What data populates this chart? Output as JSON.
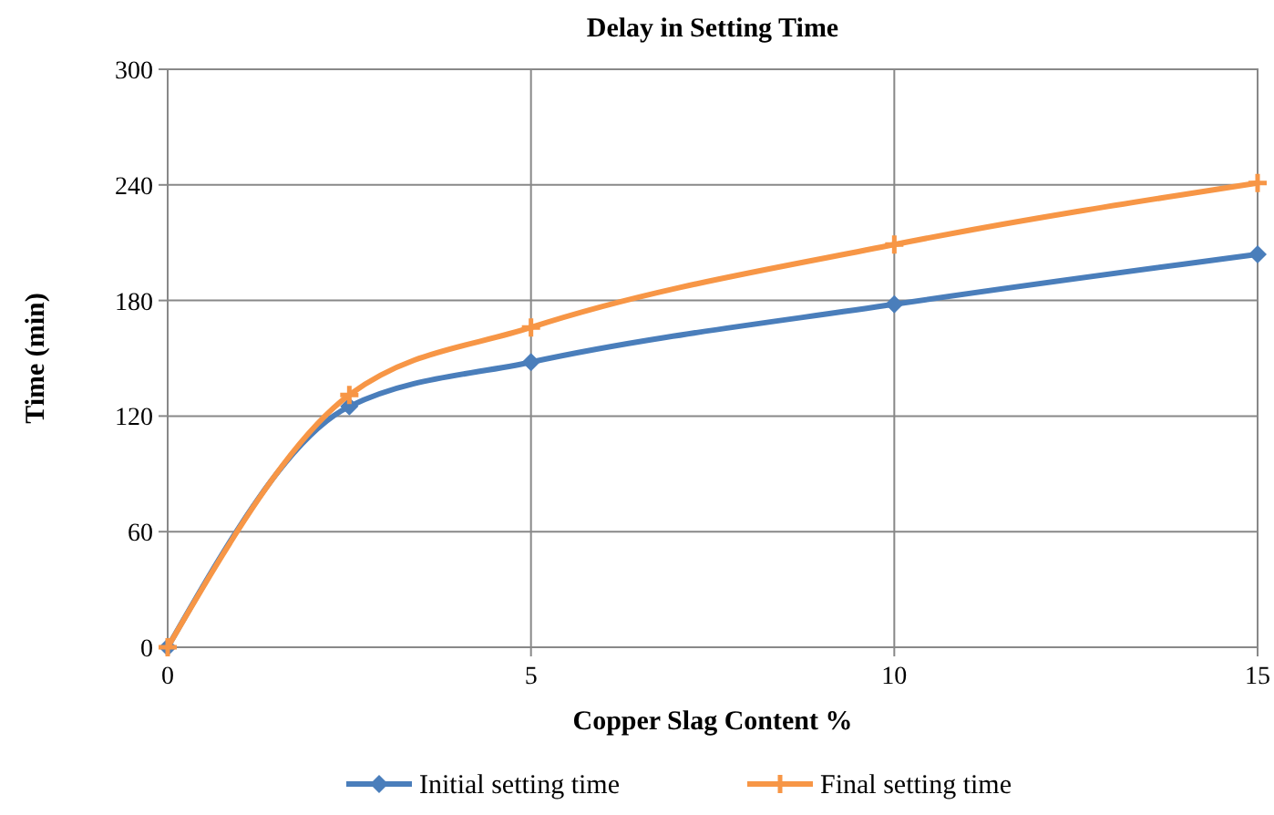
{
  "chart_data": {
    "type": "line",
    "title": "Delay in Setting Time",
    "xlabel": "Copper  Slag Content %",
    "ylabel": "Time (min)",
    "x": [
      0,
      2.5,
      5,
      10,
      15
    ],
    "xlim": [
      0,
      15
    ],
    "xticks": [
      0,
      5,
      10,
      15
    ],
    "ylim": [
      0,
      300
    ],
    "yticks": [
      0,
      60,
      120,
      180,
      240,
      300
    ],
    "grid": true,
    "legend": "bottom",
    "series": [
      {
        "name": "Initial setting time",
        "color": "#4a7ebb",
        "marker": "diamond",
        "values": [
          0,
          125,
          148,
          178,
          204
        ]
      },
      {
        "name": "Final setting time",
        "color": "#f79646",
        "marker": "cross",
        "values": [
          0,
          131,
          166,
          209,
          241
        ]
      }
    ]
  }
}
